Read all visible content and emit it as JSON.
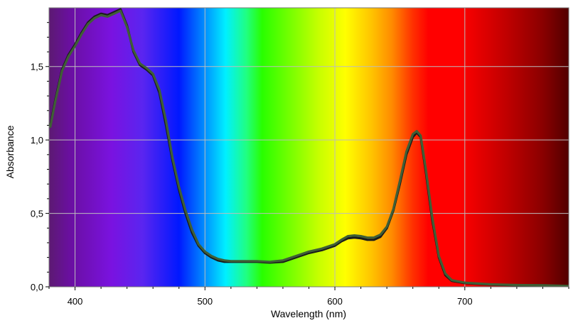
{
  "chart_data": {
    "type": "line",
    "xlabel": "Wavelength (nm)",
    "ylabel": "Absorbance",
    "xlim": [
      380,
      780
    ],
    "ylim": [
      0,
      1.9
    ],
    "grid": true,
    "background": "visible spectrum gradient (violet to dark red)",
    "x_ticks": [
      {
        "value": 400,
        "label": "400"
      },
      {
        "value": 500,
        "label": "500"
      },
      {
        "value": 600,
        "label": "600"
      },
      {
        "value": 700,
        "label": "700"
      }
    ],
    "y_ticks": [
      {
        "value": 0.0,
        "label": "0,0"
      },
      {
        "value": 0.5,
        "label": "0,5"
      },
      {
        "value": 1.0,
        "label": "1,0"
      },
      {
        "value": 1.5,
        "label": "1,5"
      }
    ],
    "series": [
      {
        "color": "#1a1a1a",
        "x": [
          381,
          385,
          390,
          395,
          400,
          405,
          410,
          415,
          420,
          425,
          430,
          435,
          440,
          445,
          450,
          455,
          460,
          465,
          470,
          475,
          480,
          485,
          490,
          495,
          500,
          505,
          510,
          515,
          520,
          530,
          540,
          550,
          560,
          570,
          580,
          590,
          600,
          605,
          610,
          615,
          620,
          625,
          630,
          635,
          640,
          645,
          650,
          655,
          660,
          663,
          666,
          670,
          675,
          680,
          685,
          690,
          700,
          720,
          740,
          760,
          780
        ],
        "y": [
          1.1,
          1.28,
          1.48,
          1.58,
          1.65,
          1.73,
          1.8,
          1.84,
          1.86,
          1.85,
          1.87,
          1.89,
          1.78,
          1.6,
          1.51,
          1.48,
          1.44,
          1.32,
          1.1,
          0.86,
          0.66,
          0.5,
          0.37,
          0.28,
          0.23,
          0.2,
          0.18,
          0.17,
          0.17,
          0.17,
          0.17,
          0.165,
          0.17,
          0.2,
          0.23,
          0.25,
          0.28,
          0.31,
          0.33,
          0.335,
          0.33,
          0.32,
          0.32,
          0.34,
          0.4,
          0.52,
          0.7,
          0.9,
          1.02,
          1.05,
          1.02,
          0.78,
          0.45,
          0.2,
          0.08,
          0.04,
          0.025,
          0.015,
          0.01,
          0.01,
          0.005
        ]
      },
      {
        "color": "#3f5f36",
        "x": [
          381,
          385,
          390,
          395,
          400,
          405,
          410,
          415,
          420,
          425,
          430,
          435,
          440,
          445,
          450,
          455,
          460,
          465,
          470,
          475,
          480,
          485,
          490,
          495,
          500,
          505,
          510,
          515,
          520,
          530,
          540,
          550,
          560,
          570,
          580,
          590,
          600,
          605,
          610,
          615,
          620,
          625,
          630,
          635,
          640,
          645,
          650,
          655,
          660,
          663,
          666,
          670,
          675,
          680,
          685,
          690,
          700,
          720,
          740,
          760,
          780
        ],
        "y": [
          1.09,
          1.27,
          1.47,
          1.57,
          1.64,
          1.72,
          1.79,
          1.83,
          1.85,
          1.84,
          1.86,
          1.88,
          1.77,
          1.61,
          1.52,
          1.49,
          1.45,
          1.34,
          1.13,
          0.88,
          0.68,
          0.52,
          0.39,
          0.29,
          0.24,
          0.21,
          0.19,
          0.18,
          0.175,
          0.175,
          0.175,
          0.17,
          0.18,
          0.21,
          0.24,
          0.26,
          0.29,
          0.32,
          0.345,
          0.35,
          0.345,
          0.335,
          0.335,
          0.355,
          0.41,
          0.53,
          0.72,
          0.92,
          1.04,
          1.06,
          1.03,
          0.8,
          0.47,
          0.21,
          0.09,
          0.045,
          0.028,
          0.017,
          0.012,
          0.01,
          0.006
        ]
      }
    ]
  }
}
